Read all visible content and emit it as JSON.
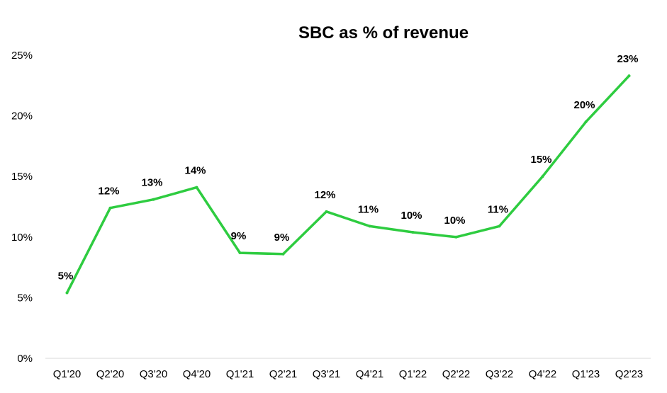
{
  "chart_data": {
    "type": "line",
    "title": "SBC as % of revenue",
    "xlabel": "",
    "ylabel": "",
    "categories": [
      "Q1'20",
      "Q2'20",
      "Q3'20",
      "Q4'20",
      "Q1'21",
      "Q2'21",
      "Q3'21",
      "Q4'21",
      "Q1'22",
      "Q2'22",
      "Q3'22",
      "Q4'22",
      "Q1'23",
      "Q2'23"
    ],
    "series": [
      {
        "name": "",
        "color": "#2ecc40",
        "values": [
          5.4,
          12.4,
          13.1,
          14.1,
          8.7,
          8.6,
          12.1,
          10.9,
          10.4,
          10.0,
          10.9,
          15.0,
          19.5,
          23.3
        ],
        "labels": [
          "5%",
          "12%",
          "13%",
          "14%",
          "9%",
          "9%",
          "12%",
          "11%",
          "10%",
          "10%",
          "11%",
          "15%",
          "20%",
          "23%"
        ]
      }
    ],
    "ylim": [
      0,
      25
    ],
    "yticks": [
      0,
      5,
      10,
      15,
      20,
      25
    ],
    "ytick_labels": [
      "0%",
      "5%",
      "10%",
      "15%",
      "20%",
      "25%"
    ],
    "grid": false,
    "legend": "none"
  }
}
